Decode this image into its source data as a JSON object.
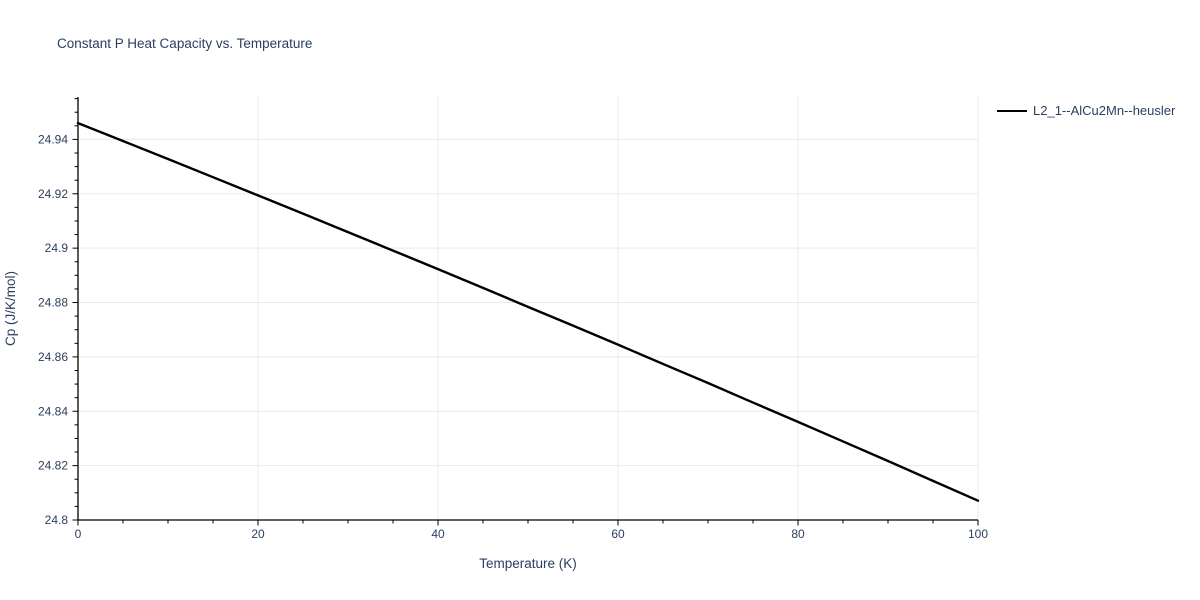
{
  "title": "Constant P Heat Capacity vs. Temperature",
  "colors": {
    "text": "#2a3f5f",
    "grid": "#e9e9e9",
    "axis": "#000000",
    "background": "#ffffff",
    "trace": "#000000"
  },
  "legend": {
    "items": [
      {
        "label": "L2_1--AlCu2Mn--heusler",
        "color": "#000000"
      }
    ]
  },
  "chart_data": {
    "type": "line",
    "title": "Constant P Heat Capacity vs. Temperature",
    "xlabel": "Temperature (K)",
    "ylabel": "Cp (J/K/mol)",
    "xlim": [
      0,
      100
    ],
    "ylim": [
      24.8,
      24.9556
    ],
    "x_ticks": [
      0,
      20,
      40,
      60,
      80,
      100
    ],
    "x_tick_labels": [
      "0",
      "20",
      "40",
      "60",
      "80",
      "100"
    ],
    "x_minor_step": 5,
    "y_ticks": [
      24.8,
      24.82,
      24.84,
      24.86,
      24.88,
      24.9,
      24.92,
      24.94
    ],
    "y_tick_labels": [
      "24.8",
      "24.82",
      "24.84",
      "24.86",
      "24.88",
      "24.9",
      "24.92",
      "24.94"
    ],
    "y_minor_step": 0.005,
    "grid": true,
    "legend_position": "top-right-outside",
    "series": [
      {
        "name": "L2_1--AlCu2Mn--heusler",
        "color": "#000000",
        "x": [
          0,
          5,
          10,
          15,
          20,
          25,
          30,
          35,
          40,
          45,
          50,
          55,
          60,
          65,
          70,
          75,
          80,
          85,
          90,
          95,
          100
        ],
        "y": [
          24.946,
          24.9394,
          24.9328,
          24.9261,
          24.9194,
          24.9127,
          24.9059,
          24.8991,
          24.8923,
          24.8854,
          24.8784,
          24.8715,
          24.8645,
          24.8574,
          24.8504,
          24.8432,
          24.8361,
          24.8289,
          24.8217,
          24.8144,
          24.8071
        ]
      }
    ]
  }
}
